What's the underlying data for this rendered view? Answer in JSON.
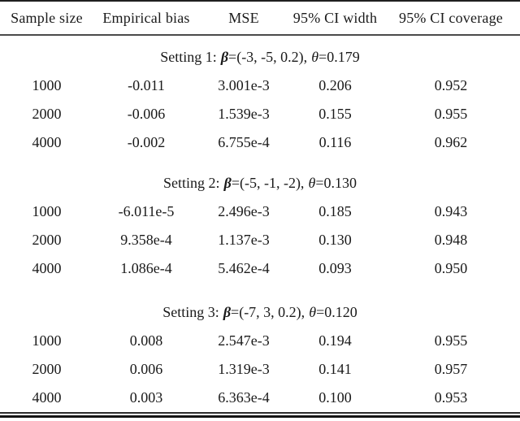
{
  "table": {
    "columns": [
      "Sample size",
      "Empirical bias",
      "MSE",
      "95% CI width",
      "95% CI coverage"
    ],
    "sections": [
      {
        "label": "Setting 1:",
        "beta_symbol": "β",
        "beta_value": "=(-3, -5, 0.2),",
        "theta_symbol": "θ",
        "theta_value": "=0.179",
        "rows": [
          [
            "1000",
            "-0.011",
            "3.001e-3",
            "0.206",
            "0.952"
          ],
          [
            "2000",
            "-0.006",
            "1.539e-3",
            "0.155",
            "0.955"
          ],
          [
            "4000",
            "-0.002",
            "6.755e-4",
            "0.116",
            "0.962"
          ]
        ]
      },
      {
        "label": "Setting 2:",
        "beta_symbol": "β",
        "beta_value": "=(-5, -1, -2),",
        "theta_symbol": "θ",
        "theta_value": "=0.130",
        "rows": [
          [
            "1000",
            "-6.011e-5",
            "2.496e-3",
            "0.185",
            "0.943"
          ],
          [
            "2000",
            "9.358e-4",
            "1.137e-3",
            "0.130",
            "0.948"
          ],
          [
            "4000",
            "1.086e-4",
            "5.462e-4",
            "0.093",
            "0.950"
          ]
        ]
      },
      {
        "label": "Setting 3:",
        "beta_symbol": "β",
        "beta_value": "=(-7, 3, 0.2),",
        "theta_symbol": "θ",
        "theta_value": "=0.120",
        "rows": [
          [
            "1000",
            "0.008",
            "2.547e-3",
            "0.194",
            "0.955"
          ],
          [
            "2000",
            "0.006",
            "1.319e-3",
            "0.141",
            "0.957"
          ],
          [
            "4000",
            "0.003",
            "6.363e-4",
            "0.100",
            "0.953"
          ]
        ]
      }
    ]
  },
  "colors": {
    "text": "#1a1a1a",
    "rule_top": "#1f1f1f",
    "rule_header": "#4a4a4a",
    "rule_bottom_thin": "#2e2e2e",
    "rule_bottom_thick": "#141414"
  }
}
